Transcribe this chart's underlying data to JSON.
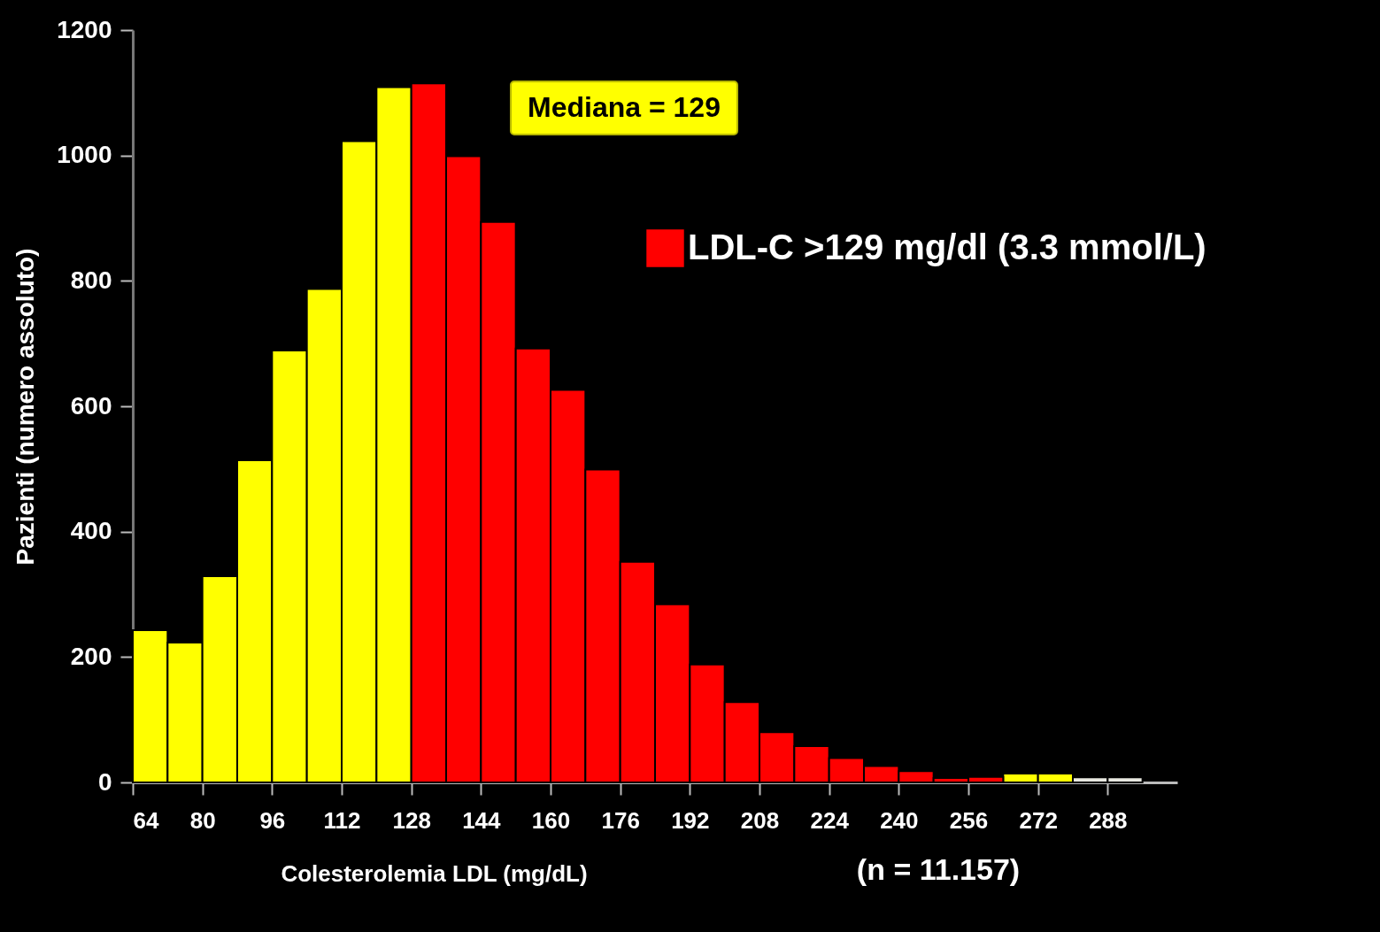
{
  "chart_data": {
    "type": "histogram",
    "xlabel": "Colesterolemia LDL   (mg/dL)",
    "ylabel": "Pazienti (numero assoluto)",
    "bins": [
      64,
      72,
      80,
      88,
      96,
      104,
      112,
      120,
      128,
      136,
      144,
      152,
      160,
      168,
      176,
      184,
      192,
      200,
      208,
      216,
      224,
      232,
      240,
      248,
      256,
      264,
      272,
      280,
      288,
      296
    ],
    "series": [
      {
        "color": "#ffff00",
        "values": [
          243,
          223,
          329,
          514,
          689,
          787,
          1023,
          1109,
          null,
          null,
          null,
          null,
          null,
          null,
          null,
          null,
          null,
          null,
          null,
          null,
          null,
          null,
          null,
          null,
          null,
          14,
          14,
          null,
          null
        ]
      },
      {
        "name": "LDL-C >129 mg/dl (3.3 mmol/L)",
        "color": "#ff0000",
        "values": [
          null,
          null,
          null,
          null,
          null,
          null,
          null,
          null,
          1115,
          999,
          894,
          692,
          626,
          499,
          352,
          284,
          188,
          128,
          80,
          58,
          39,
          26,
          18,
          7,
          9,
          null,
          null,
          null,
          null
        ]
      },
      {
        "color": "#e8e8e0",
        "values": [
          null,
          null,
          null,
          null,
          null,
          null,
          null,
          null,
          null,
          null,
          null,
          null,
          null,
          null,
          null,
          null,
          null,
          null,
          null,
          null,
          null,
          null,
          null,
          null,
          null,
          null,
          null,
          8,
          8
        ]
      }
    ],
    "xlim": [
      64,
      304
    ],
    "xticks": [
      64,
      80,
      96,
      112,
      128,
      144,
      160,
      176,
      192,
      208,
      224,
      240,
      256,
      272,
      288
    ],
    "ylim": [
      0,
      1200
    ],
    "yticks": [
      0,
      200,
      400,
      600,
      800,
      1000,
      1200
    ],
    "grid": false,
    "legend": "top right",
    "annotations": [
      "Mediana = 129",
      "(n = 11.157)"
    ]
  }
}
